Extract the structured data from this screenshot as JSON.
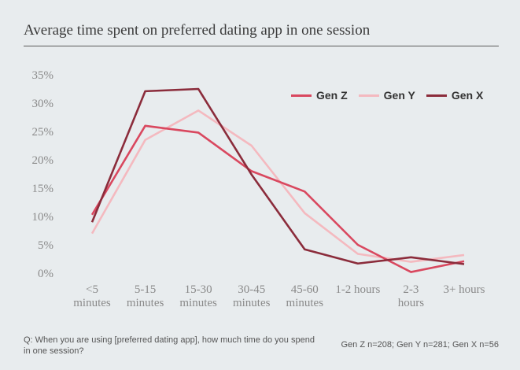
{
  "title": "Average time spent on preferred dating app in one session",
  "footnote": "Q: When you are using [preferred  dating app], how much time do you spend in one session?",
  "sample_note": "Gen Z n=208; Gen Y n=281; Gen X n=56",
  "chart_data": {
    "type": "line",
    "categories": [
      [
        "<5",
        "minutes"
      ],
      [
        "5-15",
        "minutes"
      ],
      [
        "15-30",
        "minutes"
      ],
      [
        "30-45",
        "minutes"
      ],
      [
        "45-60",
        "minutes"
      ],
      [
        "1-2 hours"
      ],
      [
        "2-3",
        "hours"
      ],
      [
        "3+ hours"
      ]
    ],
    "ylim": [
      0,
      35
    ],
    "yticks": [
      "0%",
      "5%",
      "10%",
      "15%",
      "20%",
      "25%",
      "30%",
      "35%"
    ],
    "legend_position": "top-right",
    "grid": false,
    "series": [
      {
        "name": "Gen Z",
        "color": "#d9485f",
        "values": [
          10.3,
          26.0,
          24.8,
          18.0,
          14.4,
          5.0,
          0.2,
          2.1
        ]
      },
      {
        "name": "Gen Y",
        "color": "#f4b9bf",
        "values": [
          7.0,
          23.5,
          28.7,
          22.5,
          10.6,
          3.4,
          2.0,
          3.2
        ]
      },
      {
        "name": "Gen X",
        "color": "#8b2c3b",
        "values": [
          9.0,
          32.1,
          32.5,
          17.4,
          4.2,
          1.7,
          2.8,
          1.6
        ]
      }
    ]
  }
}
